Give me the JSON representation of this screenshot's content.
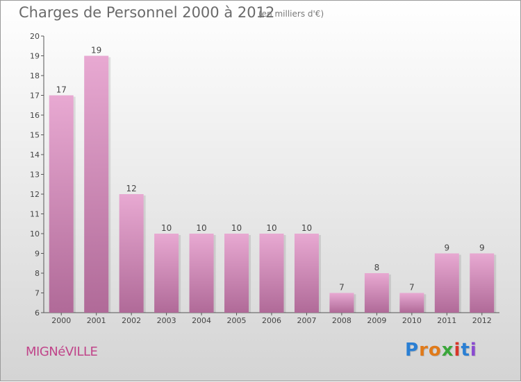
{
  "header": {
    "title": "Charges de Personnel 2000 à 2012",
    "unit": "(en milliers d'€)"
  },
  "commune": "MIGNéVILLE",
  "brand": {
    "letters": [
      "P",
      "r",
      "o",
      "x",
      "i",
      "t",
      "i"
    ],
    "colors": [
      "#2a7fd4",
      "#e07a1a",
      "#e07a1a",
      "#3aa63a",
      "#d8352a",
      "#2a7fd4",
      "#8a4ad0"
    ]
  },
  "colors": {
    "bar_top": "#e8a9d2",
    "bar_bottom": "#b06a98",
    "axis": "#555555",
    "text": "#444444"
  },
  "chart_data": {
    "type": "bar",
    "categories": [
      "2000",
      "2001",
      "2002",
      "2003",
      "2004",
      "2005",
      "2006",
      "2007",
      "2008",
      "2009",
      "2010",
      "2011",
      "2012"
    ],
    "values": [
      17,
      19,
      12,
      10,
      10,
      10,
      10,
      10,
      7,
      8,
      7,
      9,
      9
    ],
    "ylim": [
      6,
      20
    ],
    "yticks": [
      6,
      7,
      8,
      9,
      10,
      11,
      12,
      13,
      14,
      15,
      16,
      17,
      18,
      19,
      20
    ],
    "grid": false
  }
}
